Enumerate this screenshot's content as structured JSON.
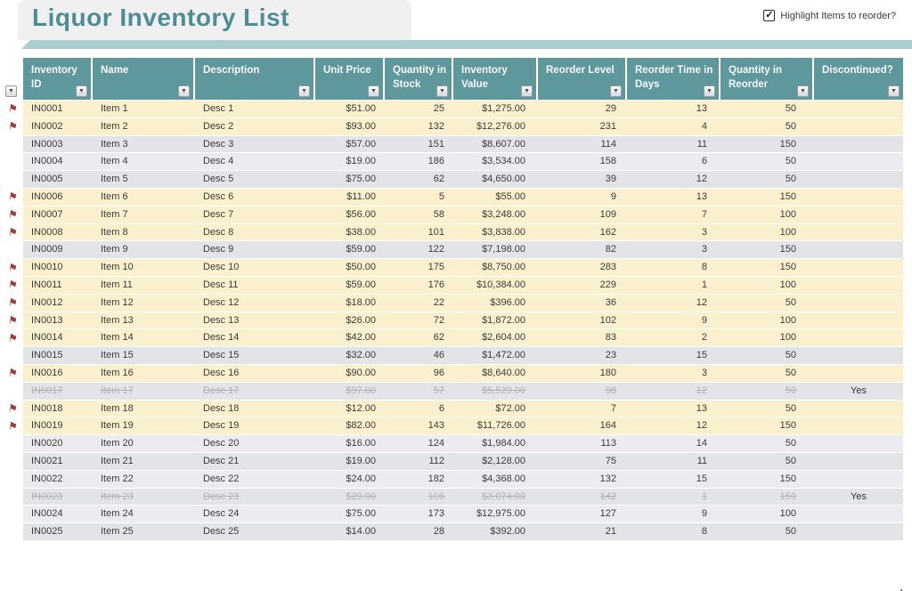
{
  "page": {
    "title": "Liquor Inventory List"
  },
  "controls": {
    "highlight_checkbox_label": "Highlight Items to reorder?",
    "highlight_checked": true
  },
  "icons": {
    "flag": "⚑",
    "dropdown": "▼",
    "check": "✓",
    "resize_handle": "◢"
  },
  "colors": {
    "header_teal": "#5F989C",
    "title_teal": "#4E8D97",
    "band_teal": "#A9CDD1",
    "reorder_highlight": "#FBF0CD",
    "row_gray": "#E3E4E8",
    "row_light": "#ECECF0",
    "flag_red": "#A23B3E"
  },
  "table": {
    "columns": [
      {
        "key": "id",
        "label": "Inventory ID"
      },
      {
        "key": "name",
        "label": "Name"
      },
      {
        "key": "desc",
        "label": "Description"
      },
      {
        "key": "price",
        "label": "Unit Price"
      },
      {
        "key": "qty",
        "label": "Quantity in Stock"
      },
      {
        "key": "value",
        "label": "Inventory Value"
      },
      {
        "key": "level",
        "label": "Reorder Level"
      },
      {
        "key": "time",
        "label": "Reorder Time in Days"
      },
      {
        "key": "rqty",
        "label": "Quantity in Reorder"
      },
      {
        "key": "discontinued",
        "label": "Discontinued?"
      }
    ],
    "rows": [
      {
        "id": "IN0001",
        "name": "Item 1",
        "desc": "Desc 1",
        "price": "$51.00",
        "qty": "25",
        "value": "$1,275.00",
        "level": "29",
        "time": "13",
        "rqty": "50",
        "discontinued": "",
        "flag": true,
        "shade": "cream"
      },
      {
        "id": "IN0002",
        "name": "Item 2",
        "desc": "Desc 2",
        "price": "$93.00",
        "qty": "132",
        "value": "$12,276.00",
        "level": "231",
        "time": "4",
        "rqty": "50",
        "discontinued": "",
        "flag": true,
        "shade": "cream"
      },
      {
        "id": "IN0003",
        "name": "Item 3",
        "desc": "Desc 3",
        "price": "$57.00",
        "qty": "151",
        "value": "$8,607.00",
        "level": "114",
        "time": "11",
        "rqty": "150",
        "discontinued": "",
        "flag": false,
        "shade": "a"
      },
      {
        "id": "IN0004",
        "name": "Item 4",
        "desc": "Desc 4",
        "price": "$19.00",
        "qty": "186",
        "value": "$3,534.00",
        "level": "158",
        "time": "6",
        "rqty": "50",
        "discontinued": "",
        "flag": false,
        "shade": "b"
      },
      {
        "id": "IN0005",
        "name": "Item 5",
        "desc": "Desc 5",
        "price": "$75.00",
        "qty": "62",
        "value": "$4,650.00",
        "level": "39",
        "time": "12",
        "rqty": "50",
        "discontinued": "",
        "flag": false,
        "shade": "a"
      },
      {
        "id": "IN0006",
        "name": "Item 6",
        "desc": "Desc 6",
        "price": "$11.00",
        "qty": "5",
        "value": "$55.00",
        "level": "9",
        "time": "13",
        "rqty": "150",
        "discontinued": "",
        "flag": true,
        "shade": "cream"
      },
      {
        "id": "IN0007",
        "name": "Item 7",
        "desc": "Desc 7",
        "price": "$56.00",
        "qty": "58",
        "value": "$3,248.00",
        "level": "109",
        "time": "7",
        "rqty": "100",
        "discontinued": "",
        "flag": true,
        "shade": "cream"
      },
      {
        "id": "IN0008",
        "name": "Item 8",
        "desc": "Desc 8",
        "price": "$38.00",
        "qty": "101",
        "value": "$3,838.00",
        "level": "162",
        "time": "3",
        "rqty": "100",
        "discontinued": "",
        "flag": true,
        "shade": "cream"
      },
      {
        "id": "IN0009",
        "name": "Item 9",
        "desc": "Desc 9",
        "price": "$59.00",
        "qty": "122",
        "value": "$7,198.00",
        "level": "82",
        "time": "3",
        "rqty": "150",
        "discontinued": "",
        "flag": false,
        "shade": "a"
      },
      {
        "id": "IN0010",
        "name": "Item 10",
        "desc": "Desc 10",
        "price": "$50.00",
        "qty": "175",
        "value": "$8,750.00",
        "level": "283",
        "time": "8",
        "rqty": "150",
        "discontinued": "",
        "flag": true,
        "shade": "cream"
      },
      {
        "id": "IN0011",
        "name": "Item 11",
        "desc": "Desc 11",
        "price": "$59.00",
        "qty": "176",
        "value": "$10,384.00",
        "level": "229",
        "time": "1",
        "rqty": "100",
        "discontinued": "",
        "flag": true,
        "shade": "cream"
      },
      {
        "id": "IN0012",
        "name": "Item 12",
        "desc": "Desc 12",
        "price": "$18.00",
        "qty": "22",
        "value": "$396.00",
        "level": "36",
        "time": "12",
        "rqty": "50",
        "discontinued": "",
        "flag": true,
        "shade": "cream"
      },
      {
        "id": "IN0013",
        "name": "Item 13",
        "desc": "Desc 13",
        "price": "$26.00",
        "qty": "72",
        "value": "$1,872.00",
        "level": "102",
        "time": "9",
        "rqty": "100",
        "discontinued": "",
        "flag": true,
        "shade": "cream"
      },
      {
        "id": "IN0014",
        "name": "Item 14",
        "desc": "Desc 14",
        "price": "$42.00",
        "qty": "62",
        "value": "$2,604.00",
        "level": "83",
        "time": "2",
        "rqty": "100",
        "discontinued": "",
        "flag": true,
        "shade": "cream"
      },
      {
        "id": "IN0015",
        "name": "Item 15",
        "desc": "Desc 15",
        "price": "$32.00",
        "qty": "46",
        "value": "$1,472.00",
        "level": "23",
        "time": "15",
        "rqty": "50",
        "discontinued": "",
        "flag": false,
        "shade": "a"
      },
      {
        "id": "IN0016",
        "name": "Item 16",
        "desc": "Desc 16",
        "price": "$90.00",
        "qty": "96",
        "value": "$8,640.00",
        "level": "180",
        "time": "3",
        "rqty": "50",
        "discontinued": "",
        "flag": true,
        "shade": "cream"
      },
      {
        "id": "IN0017",
        "name": "Item 17",
        "desc": "Desc 17",
        "price": "$97.00",
        "qty": "57",
        "value": "$5,529.00",
        "level": "98",
        "time": "12",
        "rqty": "50",
        "discontinued": "Yes",
        "flag": false,
        "shade": "strike"
      },
      {
        "id": "IN0018",
        "name": "Item 18",
        "desc": "Desc 18",
        "price": "$12.00",
        "qty": "6",
        "value": "$72.00",
        "level": "7",
        "time": "13",
        "rqty": "50",
        "discontinued": "",
        "flag": true,
        "shade": "cream"
      },
      {
        "id": "IN0019",
        "name": "Item 19",
        "desc": "Desc 19",
        "price": "$82.00",
        "qty": "143",
        "value": "$11,726.00",
        "level": "164",
        "time": "12",
        "rqty": "150",
        "discontinued": "",
        "flag": true,
        "shade": "cream"
      },
      {
        "id": "IN0020",
        "name": "Item 20",
        "desc": "Desc 20",
        "price": "$16.00",
        "qty": "124",
        "value": "$1,984.00",
        "level": "113",
        "time": "14",
        "rqty": "50",
        "discontinued": "",
        "flag": false,
        "shade": "b"
      },
      {
        "id": "IN0021",
        "name": "Item 21",
        "desc": "Desc 21",
        "price": "$19.00",
        "qty": "112",
        "value": "$2,128.00",
        "level": "75",
        "time": "11",
        "rqty": "50",
        "discontinued": "",
        "flag": false,
        "shade": "a"
      },
      {
        "id": "IN0022",
        "name": "Item 22",
        "desc": "Desc 22",
        "price": "$24.00",
        "qty": "182",
        "value": "$4,368.00",
        "level": "132",
        "time": "15",
        "rqty": "150",
        "discontinued": "",
        "flag": false,
        "shade": "b"
      },
      {
        "id": "IN0023",
        "name": "Item 23",
        "desc": "Desc 23",
        "price": "$29.00",
        "qty": "106",
        "value": "$3,074.00",
        "level": "142",
        "time": "1",
        "rqty": "150",
        "discontinued": "Yes",
        "flag": false,
        "shade": "strike"
      },
      {
        "id": "IN0024",
        "name": "Item 24",
        "desc": "Desc 24",
        "price": "$75.00",
        "qty": "173",
        "value": "$12,975.00",
        "level": "127",
        "time": "9",
        "rqty": "100",
        "discontinued": "",
        "flag": false,
        "shade": "b"
      },
      {
        "id": "IN0025",
        "name": "Item 25",
        "desc": "Desc 25",
        "price": "$14.00",
        "qty": "28",
        "value": "$392.00",
        "level": "21",
        "time": "8",
        "rqty": "50",
        "discontinued": "",
        "flag": false,
        "shade": "a"
      }
    ]
  }
}
